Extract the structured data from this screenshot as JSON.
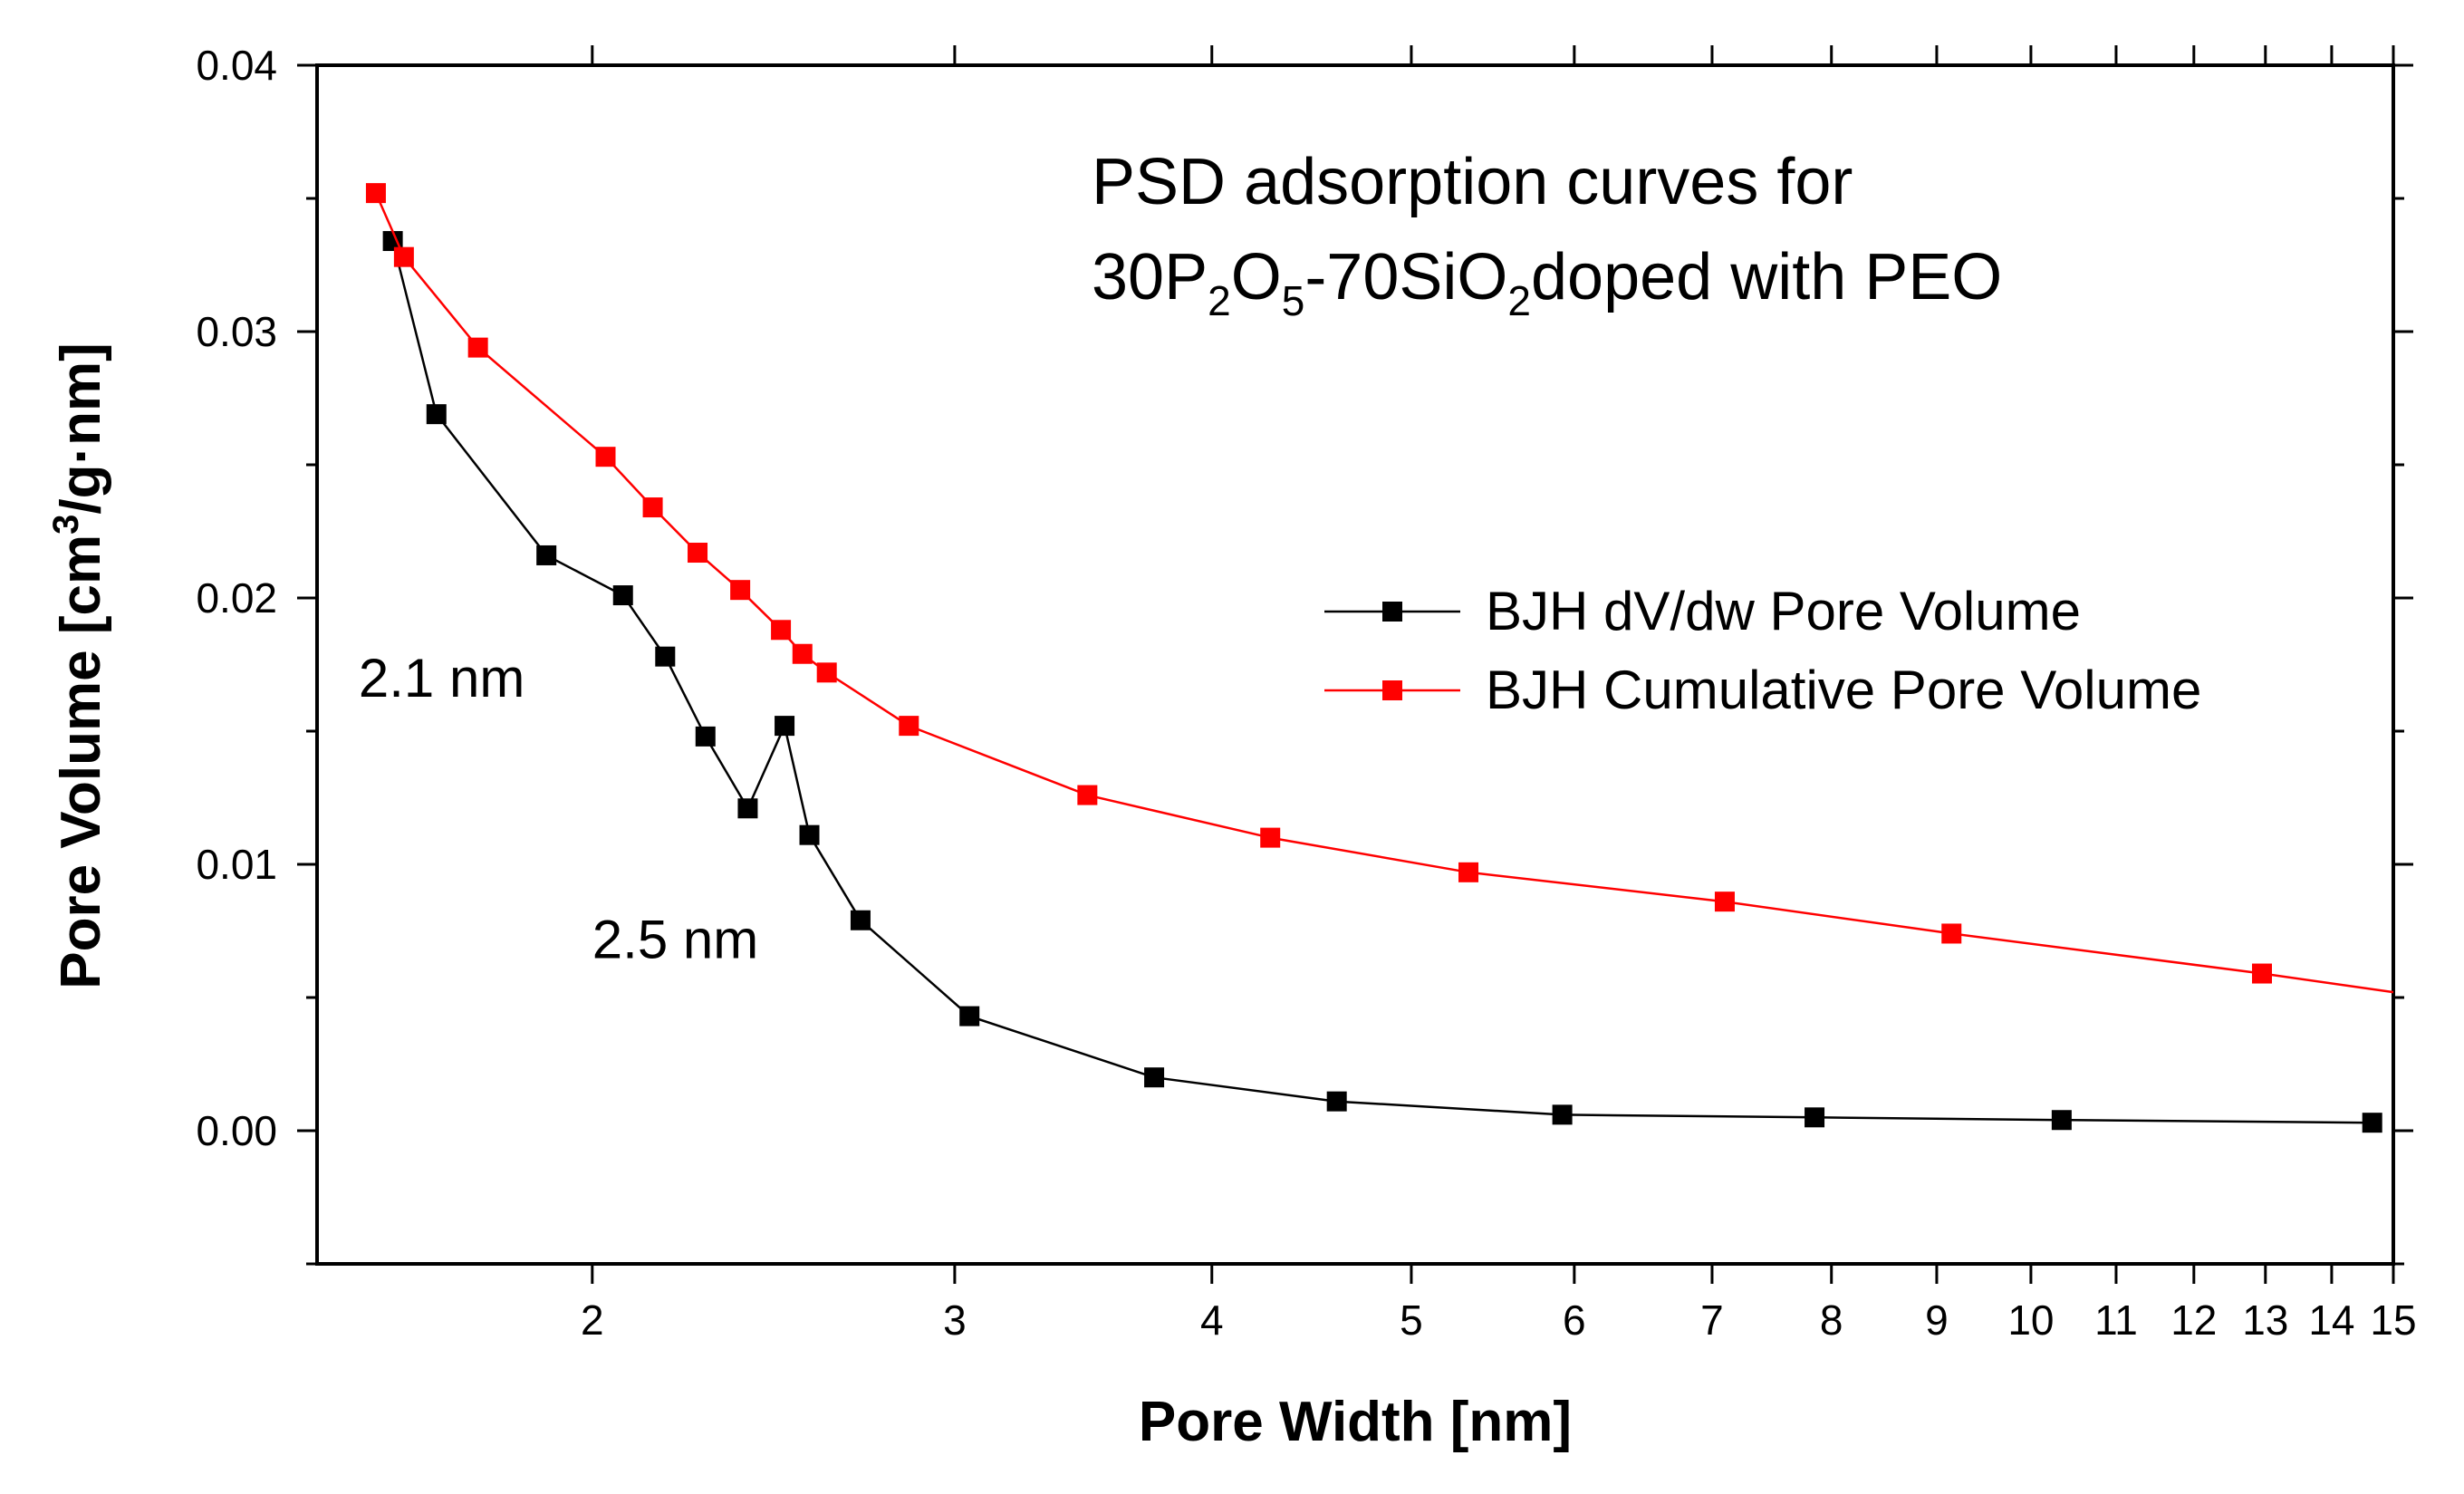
{
  "chart_data": {
    "type": "line",
    "x_scale": "log",
    "title_line1": "PSD adsorption curves for",
    "title_line2": {
      "parts": [
        {
          "text": "30P",
          "style": "normal"
        },
        {
          "text": "2",
          "style": "sub"
        },
        {
          "text": "O",
          "style": "normal"
        },
        {
          "text": "5",
          "style": "sub"
        },
        {
          "text": "-70SiO",
          "style": "normal"
        },
        {
          "text": "2",
          "style": "sub"
        },
        {
          "text": "doped with PEO",
          "style": "normal"
        }
      ]
    },
    "xlabel": "Pore Width [nm]",
    "ylabel": {
      "before": "Pore Volume [cm",
      "sup": "3",
      "after": "/g·nm]"
    },
    "xlim": [
      1.47,
      15
    ],
    "ylim": [
      -0.005,
      0.04
    ],
    "x_ticks": [
      2,
      3,
      4,
      5,
      6,
      7,
      8,
      9,
      10,
      11,
      12,
      13,
      14,
      15
    ],
    "y_ticks": [
      0.0,
      0.01,
      0.02,
      0.03,
      0.04
    ],
    "y_tick_labels": [
      "0.00",
      "0.01",
      "0.02",
      "0.03",
      "0.04"
    ],
    "annotations": [
      {
        "text": "2.1 nm",
        "x": 1.54,
        "y": 0.0169
      },
      {
        "text": "2.5 nm",
        "x": 2.0,
        "y": 0.0071
      }
    ],
    "legend_position": "center-right",
    "series": [
      {
        "name": "BJH dV/dw Pore Volume",
        "color": "#000000",
        "x": [
          1.6,
          1.68,
          1.9,
          2.07,
          2.17,
          2.27,
          2.38,
          2.48,
          2.55,
          2.7,
          3.05,
          3.75,
          4.6,
          5.92,
          7.85,
          10.35,
          14.65
        ],
        "y": [
          0.0334,
          0.0269,
          0.0216,
          0.0201,
          0.0178,
          0.0148,
          0.0121,
          0.0152,
          0.0111,
          0.0079,
          0.0043,
          0.002,
          0.0011,
          0.0006,
          0.0005,
          0.0004,
          0.0003
        ]
      },
      {
        "name": "BJH Cumulative Pore Volume",
        "color": "#ff0000",
        "x": [
          1.57,
          1.62,
          1.76,
          2.03,
          2.14,
          2.25,
          2.36,
          2.47,
          2.53,
          2.6,
          2.85,
          3.48,
          4.27,
          5.33,
          7.1,
          9.15,
          12.95,
          15.0
        ],
        "y": [
          0.0352,
          0.0328,
          0.0294,
          0.0253,
          0.0234,
          0.0217,
          0.0203,
          0.0188,
          0.0179,
          0.0172,
          0.0152,
          0.0126,
          0.011,
          0.0097,
          0.0086,
          0.0074,
          0.0059,
          0.0052
        ],
        "markers": [
          true,
          true,
          true,
          true,
          true,
          true,
          true,
          true,
          true,
          true,
          true,
          true,
          true,
          true,
          true,
          true,
          true,
          false
        ]
      }
    ]
  }
}
